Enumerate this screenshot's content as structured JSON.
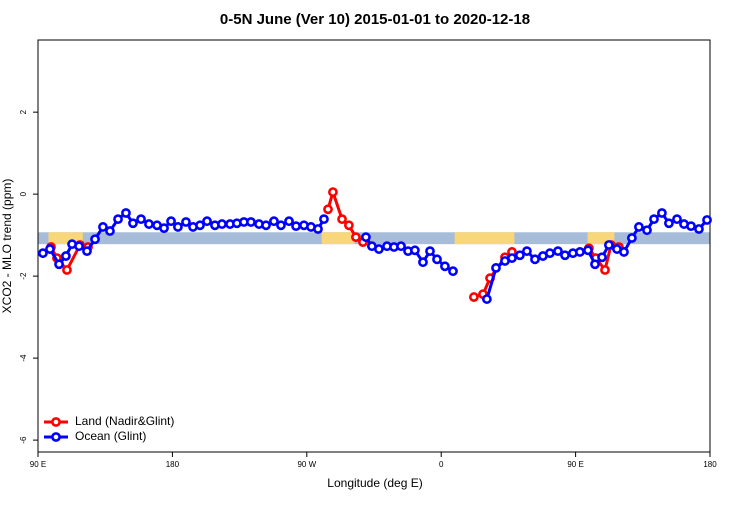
{
  "chart_data": {
    "type": "line",
    "title": "0-5N June (Ver 10)   2015-01-01 to 2020-12-18",
    "x_label": "Longitude (deg E)",
    "y_label": "XCO2 - MLO trend (ppm)",
    "xlim": [
      90,
      540
    ],
    "ylim": [
      -6.29,
      3.76
    ],
    "xticks": [
      {
        "value": 90,
        "label": "90 E"
      },
      180,
      {
        "value": 270,
        "label": "90 W"
      },
      {
        "value": 360,
        "label": "0"
      },
      {
        "value": 450,
        "label": "90 E"
      },
      {
        "value": 540,
        "label": "180"
      }
    ],
    "yticks": [
      -6,
      -4,
      -2,
      0,
      2
    ],
    "surface_band": {
      "y": [
        -1.22,
        -0.93
      ],
      "ocean_color": "#a7bcd9",
      "land_color": "#f7d77a",
      "land": [
        [
          97,
          120
        ],
        [
          280,
          302
        ],
        [
          369,
          409
        ],
        [
          458,
          476
        ]
      ]
    },
    "legend": "bottom-left",
    "series": [
      {
        "name": "Land (Nadir&Glint)",
        "color": "#ff0000",
        "x": [
          98.7,
          102.7,
          109.4,
          118.1,
          123.5,
          null,
          284.2,
          287.5,
          293.6,
          298.2,
          302.9,
          307.6,
          null,
          381.9,
          388.0,
          392.7,
          402.7,
          407.4,
          null,
          458.9,
          463.6,
          469.7,
          473.7,
          479.0
        ],
        "values": [
          -1.29,
          -1.56,
          -1.85,
          -1.24,
          -1.29,
          null,
          -0.37,
          0.05,
          -0.61,
          -0.76,
          -1.05,
          -1.17,
          null,
          -2.51,
          -2.44,
          -2.05,
          -1.54,
          -1.41,
          null,
          -1.32,
          -1.56,
          -1.85,
          -1.24,
          -1.29
        ]
      },
      {
        "name": "Ocean (Glint)",
        "color": "#0000ff",
        "x": [
          93.3,
          98.0,
          104.1,
          108.7,
          112.8,
          117.5,
          122.8,
          128.2,
          133.5,
          138.2,
          143.6,
          148.9,
          153.6,
          159.0,
          164.3,
          169.7,
          174.4,
          179.1,
          183.7,
          189.1,
          193.8,
          198.5,
          203.2,
          208.5,
          213.2,
          218.6,
          223.2,
          227.9,
          232.6,
          238.0,
          242.7,
          248.0,
          252.7,
          258.1,
          262.8,
          268.1,
          272.8,
          277.5,
          281.5,
          null,
          309.6,
          313.6,
          318.3,
          323.7,
          328.4,
          333.1,
          337.8,
          342.4,
          347.8,
          352.5,
          357.2,
          362.5,
          367.9,
          null,
          390.6,
          396.7,
          402.7,
          407.4,
          412.7,
          417.4,
          422.8,
          428.1,
          432.8,
          438.2,
          442.9,
          448.2,
          452.9,
          458.3,
          463.0,
          467.7,
          472.3,
          477.7,
          482.4,
          487.7,
          492.4,
          497.8,
          502.5,
          507.8,
          512.5,
          517.9,
          522.6,
          527.3,
          532.6,
          538.0
        ],
        "values": [
          -1.44,
          -1.34,
          -1.71,
          -1.51,
          -1.22,
          -1.27,
          -1.39,
          -1.1,
          -0.8,
          -0.9,
          -0.61,
          -0.46,
          -0.71,
          -0.61,
          -0.73,
          -0.76,
          -0.83,
          -0.66,
          -0.8,
          -0.68,
          -0.8,
          -0.76,
          -0.66,
          -0.76,
          -0.73,
          -0.73,
          -0.71,
          -0.68,
          -0.68,
          -0.73,
          -0.76,
          -0.66,
          -0.76,
          -0.66,
          -0.78,
          -0.76,
          -0.8,
          -0.85,
          -0.61,
          null,
          -1.05,
          -1.27,
          -1.34,
          -1.27,
          -1.29,
          -1.27,
          -1.39,
          -1.37,
          -1.66,
          -1.39,
          -1.59,
          -1.76,
          -1.88,
          null,
          -2.56,
          -1.8,
          -1.63,
          -1.56,
          -1.49,
          -1.39,
          -1.59,
          -1.51,
          -1.44,
          -1.39,
          -1.49,
          -1.44,
          -1.41,
          -1.37,
          -1.71,
          -1.54,
          -1.24,
          -1.34,
          -1.41,
          -1.07,
          -0.8,
          -0.88,
          -0.61,
          -0.46,
          -0.71,
          -0.61,
          -0.73,
          -0.78,
          -0.85,
          -0.63
        ]
      }
    ]
  }
}
